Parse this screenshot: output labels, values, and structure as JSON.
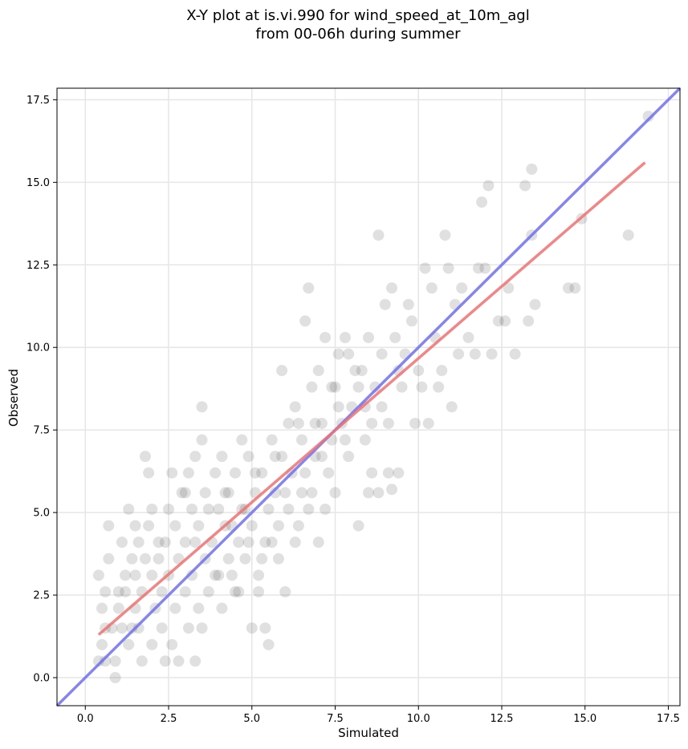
{
  "chart_data": {
    "type": "scatter",
    "title": [
      "X-Y plot at is.vi.990 for wind_speed_at_10m_agl",
      "from 00-06h during summer"
    ],
    "xlabel": "Simulated",
    "ylabel": "Observed",
    "xlim": [
      -0.85,
      17.85
    ],
    "ylim": [
      -0.85,
      17.85
    ],
    "x_ticks": [
      "0.0",
      "2.5",
      "5.0",
      "7.5",
      "10.0",
      "12.5",
      "15.0",
      "17.5"
    ],
    "y_ticks": [
      "0.0",
      "2.5",
      "5.0",
      "7.5",
      "10.0",
      "12.5",
      "15.0",
      "17.5"
    ],
    "grid": true,
    "colors": {
      "points": "#555555",
      "fit_line": "#f07070",
      "identity_line": "#7070f0"
    },
    "fit_line": {
      "x": [
        0.4,
        16.8
      ],
      "y": [
        1.3,
        15.6
      ]
    },
    "identity_line": {
      "x": [
        -0.85,
        17.85
      ],
      "y": [
        -0.85,
        17.85
      ]
    },
    "points": [
      [
        0.4,
        0.5
      ],
      [
        0.4,
        3.1
      ],
      [
        0.5,
        1.0
      ],
      [
        0.5,
        2.1
      ],
      [
        0.6,
        0.5
      ],
      [
        0.6,
        1.5
      ],
      [
        0.6,
        2.6
      ],
      [
        0.7,
        3.6
      ],
      [
        0.7,
        4.6
      ],
      [
        0.8,
        1.5
      ],
      [
        0.9,
        0.5
      ],
      [
        0.9,
        0.0
      ],
      [
        1.0,
        2.1
      ],
      [
        1.0,
        2.6
      ],
      [
        1.1,
        4.1
      ],
      [
        1.1,
        1.5
      ],
      [
        1.2,
        3.1
      ],
      [
        1.2,
        2.6
      ],
      [
        1.3,
        1.0
      ],
      [
        1.3,
        5.1
      ],
      [
        1.4,
        1.5
      ],
      [
        1.4,
        3.6
      ],
      [
        1.5,
        2.1
      ],
      [
        1.5,
        3.1
      ],
      [
        1.6,
        1.5
      ],
      [
        1.6,
        4.1
      ],
      [
        1.7,
        0.5
      ],
      [
        1.7,
        2.6
      ],
      [
        1.8,
        3.6
      ],
      [
        1.8,
        6.7
      ],
      [
        1.9,
        4.6
      ],
      [
        1.9,
        6.2
      ],
      [
        2.0,
        1.0
      ],
      [
        2.0,
        3.1
      ],
      [
        2.0,
        5.1
      ],
      [
        2.1,
        2.1
      ],
      [
        2.2,
        3.6
      ],
      [
        2.3,
        1.5
      ],
      [
        2.3,
        2.6
      ],
      [
        2.4,
        0.5
      ],
      [
        2.4,
        4.1
      ],
      [
        2.5,
        3.1
      ],
      [
        2.5,
        5.1
      ],
      [
        2.6,
        1.0
      ],
      [
        2.7,
        2.1
      ],
      [
        2.7,
        4.6
      ],
      [
        2.8,
        0.5
      ],
      [
        2.8,
        3.6
      ],
      [
        2.9,
        5.6
      ],
      [
        3.0,
        2.6
      ],
      [
        3.0,
        4.1
      ],
      [
        3.1,
        1.5
      ],
      [
        3.1,
        6.2
      ],
      [
        3.2,
        3.1
      ],
      [
        3.2,
        5.1
      ],
      [
        3.3,
        0.5
      ],
      [
        3.3,
        6.7
      ],
      [
        3.4,
        2.1
      ],
      [
        3.4,
        4.6
      ],
      [
        3.5,
        1.5
      ],
      [
        3.5,
        7.2
      ],
      [
        3.5,
        8.2
      ],
      [
        3.6,
        3.6
      ],
      [
        3.6,
        5.6
      ],
      [
        3.7,
        2.6
      ],
      [
        3.8,
        4.1
      ],
      [
        3.9,
        6.2
      ],
      [
        3.9,
        3.1
      ],
      [
        4.0,
        5.1
      ],
      [
        4.1,
        2.1
      ],
      [
        4.1,
        6.7
      ],
      [
        4.2,
        4.6
      ],
      [
        4.3,
        3.6
      ],
      [
        4.3,
        5.6
      ],
      [
        4.4,
        3.1
      ],
      [
        4.5,
        6.2
      ],
      [
        4.6,
        4.1
      ],
      [
        4.6,
        2.6
      ],
      [
        4.7,
        5.1
      ],
      [
        4.7,
        7.2
      ],
      [
        4.8,
        3.6
      ],
      [
        4.9,
        6.7
      ],
      [
        5.0,
        4.6
      ],
      [
        5.0,
        1.5
      ],
      [
        5.1,
        5.6
      ],
      [
        5.2,
        3.1
      ],
      [
        5.3,
        6.2
      ],
      [
        5.4,
        4.1
      ],
      [
        5.4,
        1.5
      ],
      [
        5.5,
        5.1
      ],
      [
        5.5,
        1.0
      ],
      [
        5.6,
        7.2
      ],
      [
        5.7,
        6.7
      ],
      [
        5.8,
        4.6
      ],
      [
        5.8,
        3.6
      ],
      [
        5.9,
        9.3
      ],
      [
        6.0,
        5.6
      ],
      [
        6.0,
        2.6
      ],
      [
        6.1,
        7.7
      ],
      [
        6.2,
        6.2
      ],
      [
        6.3,
        8.2
      ],
      [
        6.4,
        4.6
      ],
      [
        6.5,
        7.2
      ],
      [
        6.6,
        10.8
      ],
      [
        6.7,
        11.8
      ],
      [
        6.7,
        5.1
      ],
      [
        6.8,
        8.8
      ],
      [
        6.9,
        6.7
      ],
      [
        7.0,
        9.3
      ],
      [
        7.0,
        4.1
      ],
      [
        7.1,
        7.7
      ],
      [
        7.2,
        10.3
      ],
      [
        7.3,
        6.2
      ],
      [
        7.4,
        8.8
      ],
      [
        7.5,
        5.6
      ],
      [
        7.6,
        9.8
      ],
      [
        7.7,
        7.7
      ],
      [
        7.8,
        10.3
      ],
      [
        7.9,
        6.7
      ],
      [
        8.0,
        8.2
      ],
      [
        8.2,
        4.6
      ],
      [
        8.3,
        9.3
      ],
      [
        8.4,
        7.2
      ],
      [
        8.5,
        10.3
      ],
      [
        8.6,
        6.2
      ],
      [
        8.7,
        8.8
      ],
      [
        8.8,
        13.4
      ],
      [
        8.8,
        5.6
      ],
      [
        8.9,
        9.8
      ],
      [
        9.0,
        11.3
      ],
      [
        9.1,
        7.7
      ],
      [
        9.2,
        11.8
      ],
      [
        9.2,
        5.7
      ],
      [
        9.3,
        10.3
      ],
      [
        9.4,
        6.2
      ],
      [
        9.5,
        8.8
      ],
      [
        9.6,
        9.8
      ],
      [
        9.7,
        11.3
      ],
      [
        9.8,
        10.8
      ],
      [
        9.9,
        7.7
      ],
      [
        10.0,
        9.3
      ],
      [
        10.1,
        8.8
      ],
      [
        10.2,
        12.4
      ],
      [
        10.3,
        7.7
      ],
      [
        10.4,
        11.8
      ],
      [
        10.5,
        10.3
      ],
      [
        10.6,
        8.8
      ],
      [
        10.7,
        9.3
      ],
      [
        10.8,
        13.4
      ],
      [
        10.9,
        12.4
      ],
      [
        11.0,
        8.2
      ],
      [
        11.1,
        11.3
      ],
      [
        11.2,
        9.8
      ],
      [
        11.3,
        11.8
      ],
      [
        11.5,
        10.3
      ],
      [
        11.7,
        9.8
      ],
      [
        11.8,
        12.4
      ],
      [
        11.9,
        14.4
      ],
      [
        12.0,
        12.4
      ],
      [
        12.1,
        14.9
      ],
      [
        12.2,
        9.8
      ],
      [
        12.4,
        10.8
      ],
      [
        12.6,
        10.8
      ],
      [
        12.7,
        11.8
      ],
      [
        12.9,
        9.8
      ],
      [
        13.2,
        14.9
      ],
      [
        13.3,
        10.8
      ],
      [
        13.4,
        13.4
      ],
      [
        13.4,
        15.4
      ],
      [
        13.5,
        11.3
      ],
      [
        14.5,
        11.8
      ],
      [
        14.7,
        11.8
      ],
      [
        14.9,
        13.9
      ],
      [
        16.3,
        13.4
      ],
      [
        16.9,
        17.0
      ],
      [
        1.5,
        4.6
      ],
      [
        2.2,
        4.1
      ],
      [
        2.6,
        6.2
      ],
      [
        3.0,
        5.6
      ],
      [
        3.3,
        4.1
      ],
      [
        3.7,
        5.1
      ],
      [
        4.0,
        3.1
      ],
      [
        4.2,
        5.6
      ],
      [
        4.4,
        4.6
      ],
      [
        4.5,
        2.6
      ],
      [
        4.8,
        5.1
      ],
      [
        4.9,
        4.1
      ],
      [
        5.1,
        6.2
      ],
      [
        5.2,
        2.6
      ],
      [
        5.3,
        3.6
      ],
      [
        5.6,
        4.1
      ],
      [
        5.7,
        5.6
      ],
      [
        5.9,
        6.7
      ],
      [
        6.1,
        5.1
      ],
      [
        6.3,
        4.1
      ],
      [
        6.4,
        7.7
      ],
      [
        6.6,
        6.2
      ],
      [
        6.8,
        5.6
      ],
      [
        7.1,
        6.7
      ],
      [
        7.4,
        7.2
      ],
      [
        7.6,
        8.2
      ],
      [
        7.8,
        7.2
      ],
      [
        8.1,
        9.3
      ],
      [
        8.4,
        8.2
      ],
      [
        8.6,
        7.7
      ],
      [
        8.9,
        8.2
      ],
      [
        9.1,
        6.2
      ],
      [
        6.5,
        5.6
      ],
      [
        6.9,
        7.7
      ],
      [
        7.2,
        5.1
      ],
      [
        7.5,
        8.8
      ],
      [
        7.9,
        9.8
      ],
      [
        8.2,
        8.8
      ],
      [
        8.5,
        5.6
      ],
      [
        9.4,
        9.3
      ]
    ]
  }
}
